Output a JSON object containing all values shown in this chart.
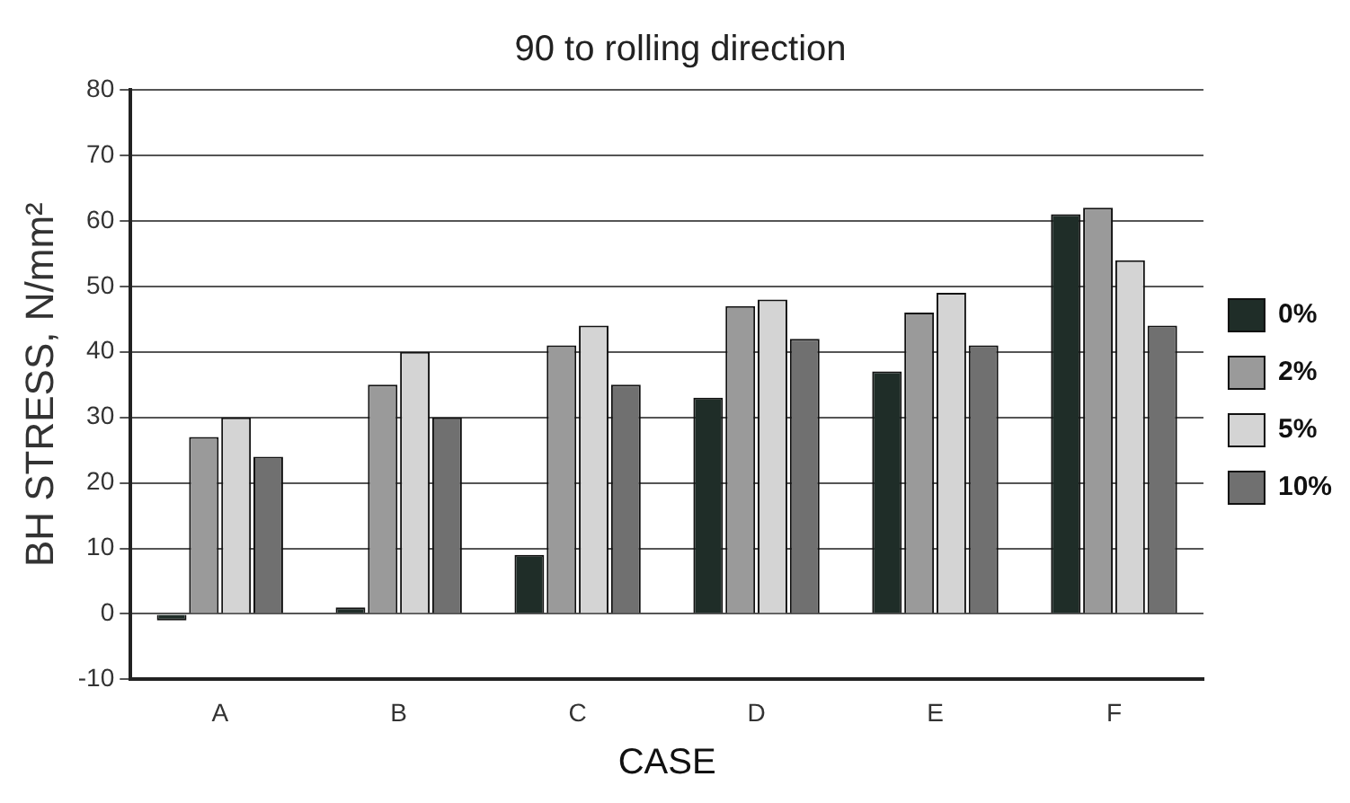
{
  "chart_data": {
    "type": "bar",
    "title": "90 to rolling direction",
    "xlabel": "CASE",
    "ylabel": "BH STRESS, N/mm²",
    "categories": [
      "A",
      "B",
      "C",
      "D",
      "E",
      "F"
    ],
    "series": [
      {
        "name": "0%",
        "color": "#1f2d28",
        "values": [
          -1,
          1,
          9,
          33,
          37,
          61
        ]
      },
      {
        "name": "2%",
        "color": "#9a9a9a",
        "values": [
          27,
          35,
          41,
          47,
          46,
          62
        ]
      },
      {
        "name": "5%",
        "color": "#d4d4d4",
        "values": [
          30,
          40,
          44,
          48,
          49,
          54
        ]
      },
      {
        "name": "10%",
        "color": "#707070",
        "values": [
          24,
          30,
          35,
          42,
          41,
          44
        ]
      }
    ],
    "ylim": [
      -10,
      80
    ],
    "yticks": [
      -10,
      0,
      10,
      20,
      30,
      40,
      50,
      60,
      70,
      80
    ],
    "grid": "y",
    "legend": "right"
  }
}
